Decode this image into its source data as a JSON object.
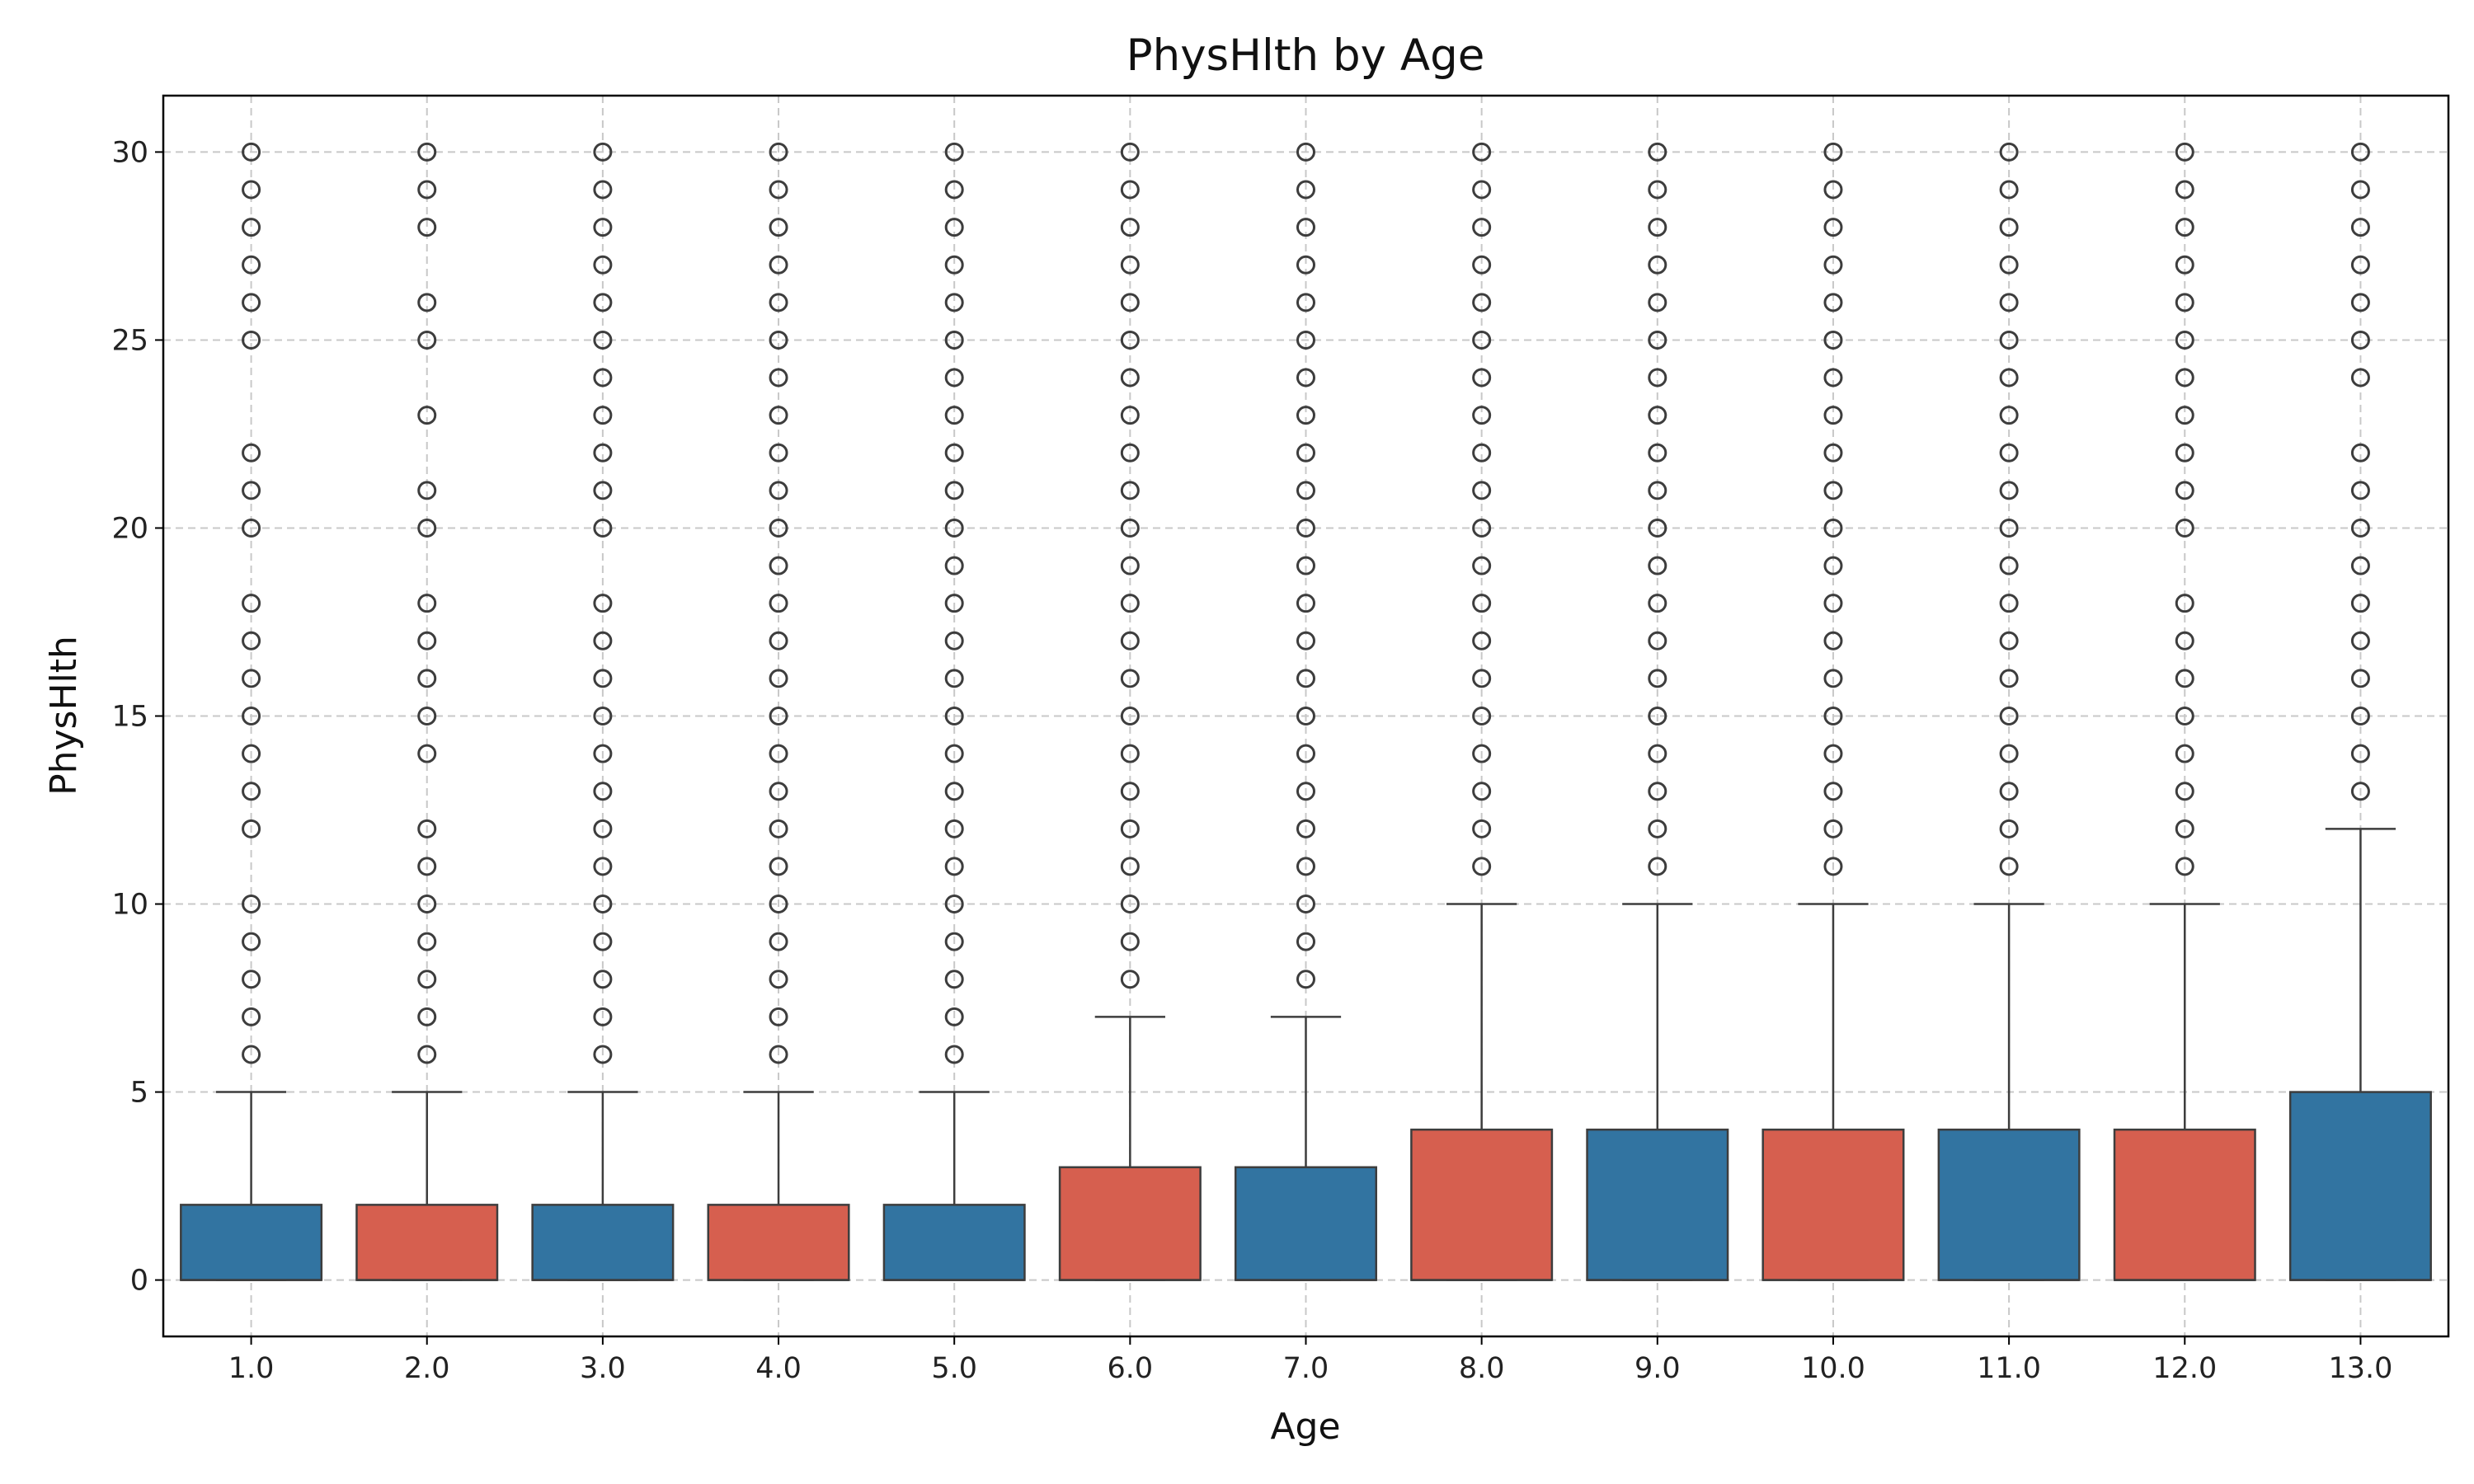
{
  "chart_data": {
    "type": "box",
    "title": "PhysHlth by Age",
    "xlabel": "Age",
    "ylabel": "PhysHlth",
    "ylim": [
      -1.5,
      31.5
    ],
    "y_ticks": [
      0,
      5,
      10,
      15,
      20,
      25,
      30
    ],
    "y_tick_labels": [
      "0",
      "5",
      "10",
      "15",
      "20",
      "25",
      "30"
    ],
    "grid": true,
    "legend": "none",
    "colors": {
      "blue": "#3274a1",
      "red": "#d65f4f",
      "edge": "#3d3d3d",
      "grid": "#c8c8c8"
    },
    "categories": [
      "1.0",
      "2.0",
      "3.0",
      "4.0",
      "5.0",
      "6.0",
      "7.0",
      "8.0",
      "9.0",
      "10.0",
      "11.0",
      "12.0",
      "13.0"
    ],
    "boxes": [
      {
        "category": "1.0",
        "color": "blue",
        "whisker_low": 0,
        "q1": 0,
        "median": 0,
        "q3": 2,
        "whisker_high": 5,
        "outliers": [
          6,
          7,
          8,
          9,
          10,
          12,
          13,
          14,
          15,
          16,
          17,
          18,
          20,
          21,
          22,
          25,
          26,
          27,
          28,
          29,
          30
        ]
      },
      {
        "category": "2.0",
        "color": "red",
        "whisker_low": 0,
        "q1": 0,
        "median": 0,
        "q3": 2,
        "whisker_high": 5,
        "outliers": [
          6,
          7,
          8,
          9,
          10,
          11,
          12,
          14,
          15,
          16,
          17,
          18,
          20,
          21,
          23,
          25,
          26,
          28,
          29,
          30
        ]
      },
      {
        "category": "3.0",
        "color": "blue",
        "whisker_low": 0,
        "q1": 0,
        "median": 0,
        "q3": 2,
        "whisker_high": 5,
        "outliers": [
          6,
          7,
          8,
          9,
          10,
          11,
          12,
          13,
          14,
          15,
          16,
          17,
          18,
          20,
          21,
          22,
          23,
          24,
          25,
          26,
          27,
          28,
          29,
          30
        ]
      },
      {
        "category": "4.0",
        "color": "red",
        "whisker_low": 0,
        "q1": 0,
        "median": 0,
        "q3": 2,
        "whisker_high": 5,
        "outliers": [
          6,
          7,
          8,
          9,
          10,
          11,
          12,
          13,
          14,
          15,
          16,
          17,
          18,
          19,
          20,
          21,
          22,
          23,
          24,
          25,
          26,
          27,
          28,
          29,
          30
        ]
      },
      {
        "category": "5.0",
        "color": "blue",
        "whisker_low": 0,
        "q1": 0,
        "median": 0,
        "q3": 2,
        "whisker_high": 5,
        "outliers": [
          6,
          7,
          8,
          9,
          10,
          11,
          12,
          13,
          14,
          15,
          16,
          17,
          18,
          19,
          20,
          21,
          22,
          23,
          24,
          25,
          26,
          27,
          28,
          29,
          30
        ]
      },
      {
        "category": "6.0",
        "color": "red",
        "whisker_low": 0,
        "q1": 0,
        "median": 0,
        "q3": 3,
        "whisker_high": 7,
        "outliers": [
          8,
          9,
          10,
          11,
          12,
          13,
          14,
          15,
          16,
          17,
          18,
          19,
          20,
          21,
          22,
          23,
          24,
          25,
          26,
          27,
          28,
          29,
          30
        ]
      },
      {
        "category": "7.0",
        "color": "blue",
        "whisker_low": 0,
        "q1": 0,
        "median": 0,
        "q3": 3,
        "whisker_high": 7,
        "outliers": [
          8,
          9,
          10,
          11,
          12,
          13,
          14,
          15,
          16,
          17,
          18,
          19,
          20,
          21,
          22,
          23,
          24,
          25,
          26,
          27,
          28,
          29,
          30
        ]
      },
      {
        "category": "8.0",
        "color": "red",
        "whisker_low": 0,
        "q1": 0,
        "median": 0,
        "q3": 4,
        "whisker_high": 10,
        "outliers": [
          11,
          12,
          13,
          14,
          15,
          16,
          17,
          18,
          19,
          20,
          21,
          22,
          23,
          24,
          25,
          26,
          27,
          28,
          29,
          30
        ]
      },
      {
        "category": "9.0",
        "color": "blue",
        "whisker_low": 0,
        "q1": 0,
        "median": 0,
        "q3": 4,
        "whisker_high": 10,
        "outliers": [
          11,
          12,
          13,
          14,
          15,
          16,
          17,
          18,
          19,
          20,
          21,
          22,
          23,
          24,
          25,
          26,
          27,
          28,
          29,
          30
        ]
      },
      {
        "category": "10.0",
        "color": "red",
        "whisker_low": 0,
        "q1": 0,
        "median": 0,
        "q3": 4,
        "whisker_high": 10,
        "outliers": [
          11,
          12,
          13,
          14,
          15,
          16,
          17,
          18,
          19,
          20,
          21,
          22,
          23,
          24,
          25,
          26,
          27,
          28,
          29,
          30
        ]
      },
      {
        "category": "11.0",
        "color": "blue",
        "whisker_low": 0,
        "q1": 0,
        "median": 0,
        "q3": 4,
        "whisker_high": 10,
        "outliers": [
          11,
          12,
          13,
          14,
          15,
          16,
          17,
          18,
          19,
          20,
          21,
          22,
          23,
          24,
          25,
          26,
          27,
          28,
          29,
          30
        ]
      },
      {
        "category": "12.0",
        "color": "red",
        "whisker_low": 0,
        "q1": 0,
        "median": 0,
        "q3": 4,
        "whisker_high": 10,
        "outliers": [
          11,
          12,
          13,
          14,
          15,
          16,
          17,
          18,
          20,
          21,
          22,
          23,
          24,
          25,
          26,
          27,
          28,
          29,
          30
        ]
      },
      {
        "category": "13.0",
        "color": "blue",
        "whisker_low": 0,
        "q1": 0,
        "median": 0,
        "q3": 5,
        "whisker_high": 12,
        "outliers": [
          13,
          14,
          15,
          16,
          17,
          18,
          19,
          20,
          21,
          22,
          24,
          25,
          26,
          27,
          28,
          29,
          30
        ]
      }
    ]
  }
}
